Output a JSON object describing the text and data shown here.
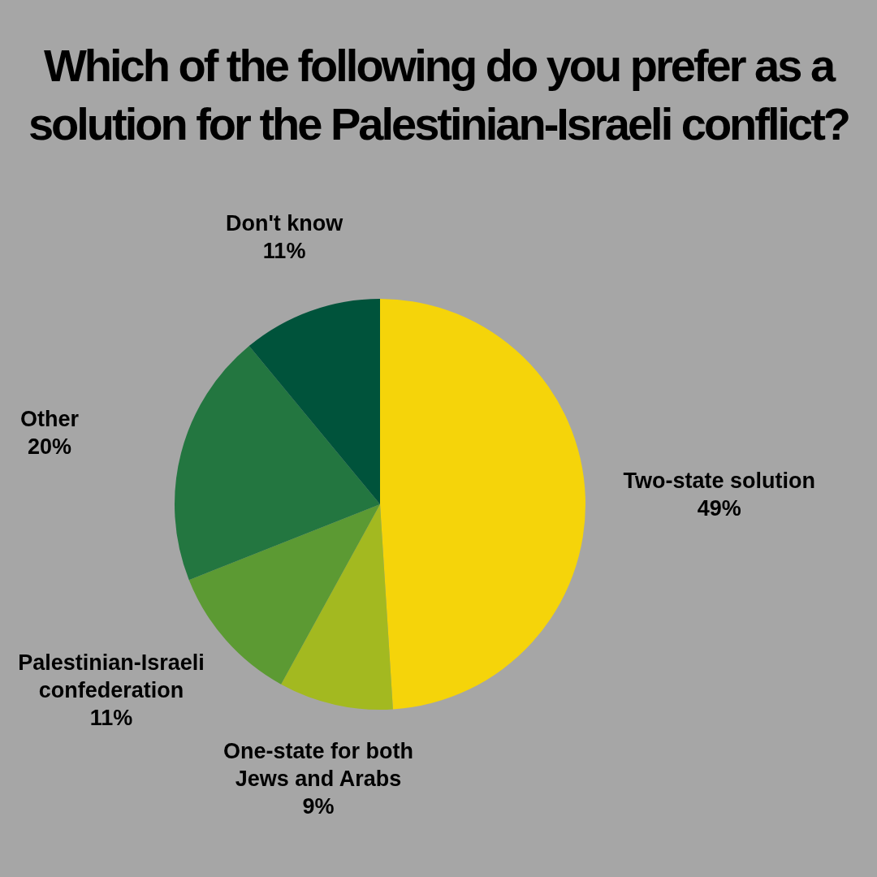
{
  "chart_data": {
    "type": "pie",
    "title": "Which of the following do you prefer as a solution for the Palestinian-Israeli conflict?",
    "categories": [
      "Two-state solution",
      "One-state for both Jews and Arabs",
      "Palestinian-Israeli confederation",
      "Other",
      "Don't know"
    ],
    "values": [
      49,
      9,
      11,
      20,
      11
    ],
    "value_labels": [
      "49%",
      "9%",
      "11%",
      "20%",
      "11%"
    ],
    "colors": [
      "#f5d40a",
      "#a3b920",
      "#5c9a33",
      "#237640",
      "#00533b"
    ],
    "data_labels": true,
    "legend": false
  }
}
